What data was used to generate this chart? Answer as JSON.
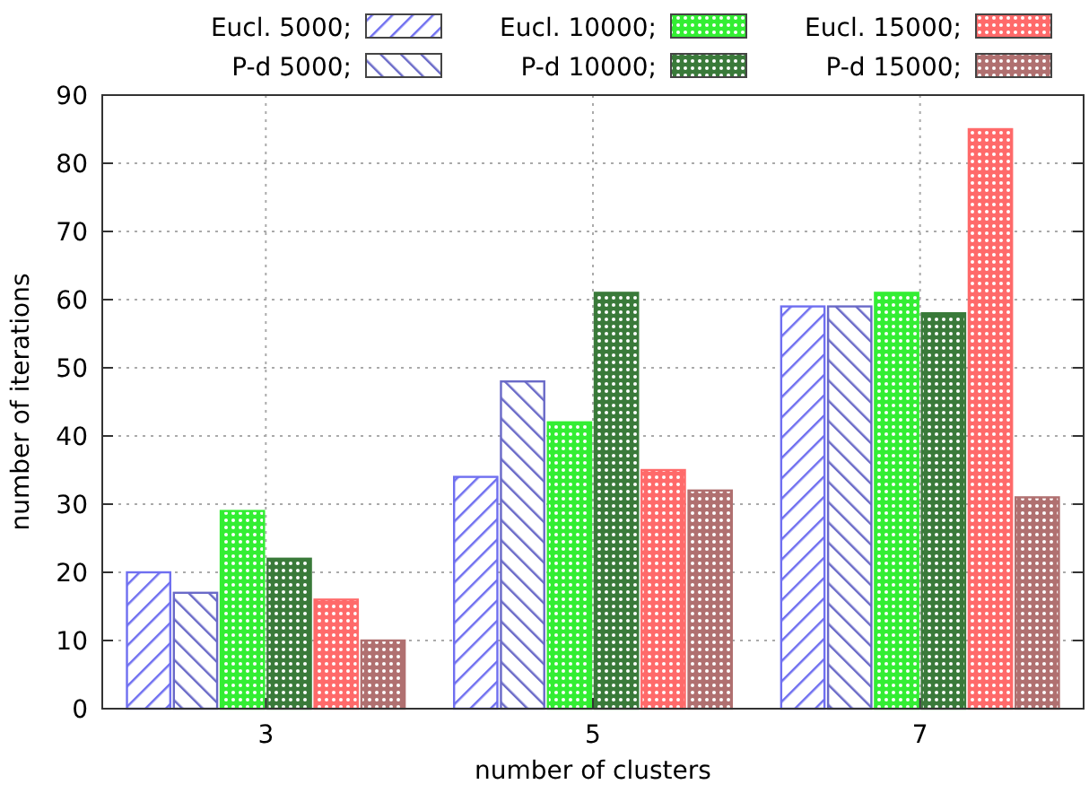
{
  "chart_data": {
    "type": "bar",
    "xlabel": "number of clusters",
    "ylabel": "number of iterations",
    "categories": [
      "3",
      "5",
      "7"
    ],
    "ylim": [
      0,
      90
    ],
    "yticks": [
      0,
      10,
      20,
      30,
      40,
      50,
      60,
      70,
      80,
      90
    ],
    "grid": true,
    "legend": "top right",
    "series": [
      {
        "name": "Eucl. 5000;",
        "color": "#6f6ff0",
        "values": [
          20,
          34,
          59
        ]
      },
      {
        "name": "P-d 5000;",
        "color": "#6a6ac8",
        "values": [
          17,
          48,
          59
        ]
      },
      {
        "name": "Eucl. 10000;",
        "color": "#33ee33",
        "values": [
          29,
          42,
          61
        ]
      },
      {
        "name": "P-d 10000;",
        "color": "#3a7a3a",
        "values": [
          22,
          61,
          58
        ]
      },
      {
        "name": "Eucl. 15000;",
        "color": "#ff6a6a",
        "values": [
          16,
          35,
          85
        ]
      },
      {
        "name": "P-d 15000;",
        "color": "#b07070",
        "values": [
          10,
          32,
          31
        ]
      }
    ]
  }
}
